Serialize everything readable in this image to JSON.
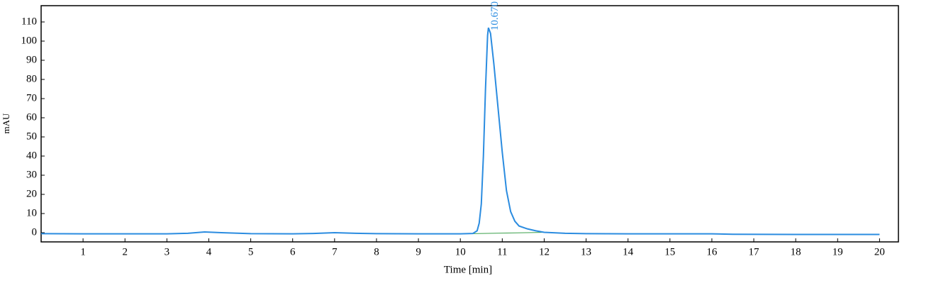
{
  "chart_data": {
    "type": "line",
    "xlabel": "Time [min]",
    "ylabel": "mAU",
    "xlim": [
      0,
      20.45
    ],
    "ylim": [
      -4.8,
      118.5
    ],
    "xticks": [
      1,
      2,
      3,
      4,
      5,
      6,
      7,
      8,
      9,
      10,
      11,
      12,
      13,
      14,
      15,
      16,
      17,
      18,
      19,
      20
    ],
    "yticks": [
      0,
      10,
      20,
      30,
      40,
      50,
      60,
      70,
      80,
      90,
      100,
      110
    ],
    "series": [
      {
        "color": "#2b8ce0",
        "x": [
          0,
          1,
          2,
          3,
          3.5,
          3.9,
          4.3,
          5,
          6,
          6.5,
          7,
          7.5,
          8,
          9,
          10,
          10.3,
          10.4,
          10.45,
          10.5,
          10.55,
          10.6,
          10.65,
          10.67,
          10.72,
          10.8,
          10.9,
          11.0,
          11.1,
          11.2,
          11.3,
          11.4,
          11.6,
          11.8,
          12,
          12.5,
          13,
          14,
          16,
          16.5,
          18,
          20
        ],
        "values": [
          -0.5,
          -0.6,
          -0.6,
          -0.6,
          -0.3,
          0.4,
          0.0,
          -0.5,
          -0.6,
          -0.4,
          0,
          -0.3,
          -0.5,
          -0.6,
          -0.6,
          -0.4,
          1,
          5,
          15,
          40,
          75,
          103,
          107,
          104,
          88,
          65,
          42,
          22,
          11,
          6,
          3.5,
          2,
          1,
          0.2,
          -0.3,
          -0.5,
          -0.6,
          -0.6,
          -0.8,
          -0.9,
          -0.9
        ]
      },
      {
        "color": "#3aa04a",
        "x": [
          10.3,
          12.0
        ],
        "values": [
          -0.5,
          0.2
        ]
      }
    ],
    "annotations": [
      {
        "text": "10.670",
        "x": 10.67,
        "y": 107
      }
    ]
  }
}
